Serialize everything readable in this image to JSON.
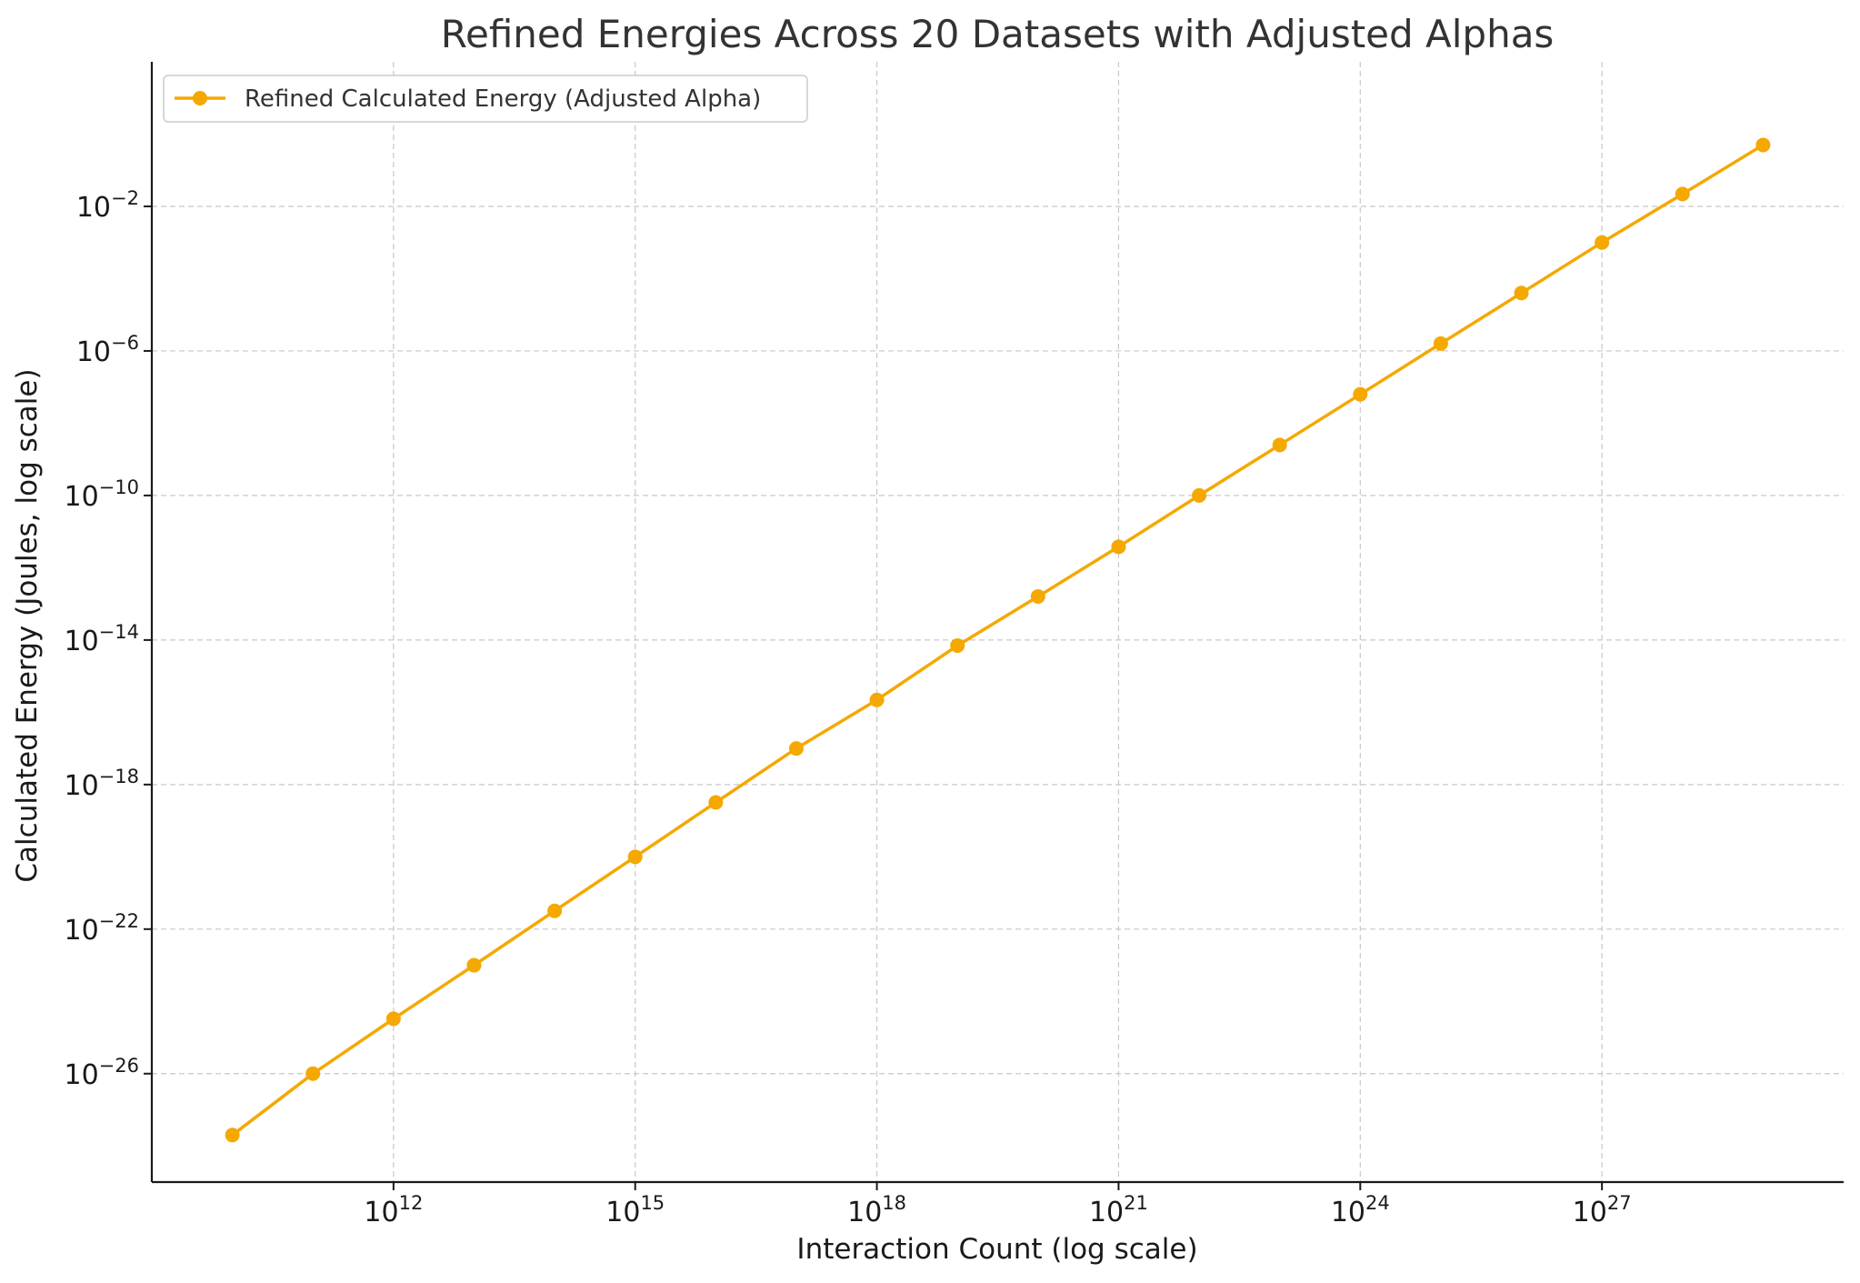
{
  "chart_data": {
    "type": "line",
    "title": "Refined Energies Across 20 Datasets with Adjusted Alphas",
    "xlabel": "Interaction Count (log scale)",
    "ylabel": "Calculated Energy (Joules, log scale)",
    "xscale": "log",
    "yscale": "log",
    "xlim": [
      1000000000.0,
      1e+30
    ],
    "ylim": [
      1e-29,
      100.0
    ],
    "xticks": [
      1000000000000.0,
      1000000000000000.0,
      1e+18,
      1e+21,
      1e+24,
      1e+27
    ],
    "xtick_exponents": [
      "12",
      "15",
      "18",
      "21",
      "24",
      "27"
    ],
    "yticks": [
      1e-26,
      1e-22,
      1e-18,
      1e-14,
      1e-10,
      1e-06,
      0.01
    ],
    "ytick_exponents": [
      "−26",
      "−22",
      "−18",
      "−14",
      "−10",
      "−6",
      "−2"
    ],
    "tick_base": "10",
    "grid": true,
    "legend_position": "top-left",
    "series": [
      {
        "name": "Refined Calculated Energy (Adjusted Alpha)",
        "color": "#f5a800",
        "marker": "circle",
        "x": [
          10000000000.0,
          100000000000.0,
          1000000000000.0,
          10000000000000.0,
          100000000000000.0,
          1000000000000000.0,
          1e+16,
          1e+17,
          1e+18,
          1e+19,
          1e+20,
          1e+21,
          1e+22,
          1e+23,
          1e+24,
          1e+25,
          1e+26,
          1e+27,
          1e+28,
          1e+29
        ],
        "y": [
          2e-28,
          1e-26,
          3.3e-25,
          1e-23,
          3.2e-22,
          1e-20,
          3.2e-19,
          1e-17,
          2.2e-16,
          7e-15,
          1.6e-13,
          3.8e-12,
          1e-10,
          2.5e-09,
          6.3e-08,
          1.6e-06,
          4e-05,
          0.001,
          0.022,
          0.5
        ]
      }
    ]
  }
}
